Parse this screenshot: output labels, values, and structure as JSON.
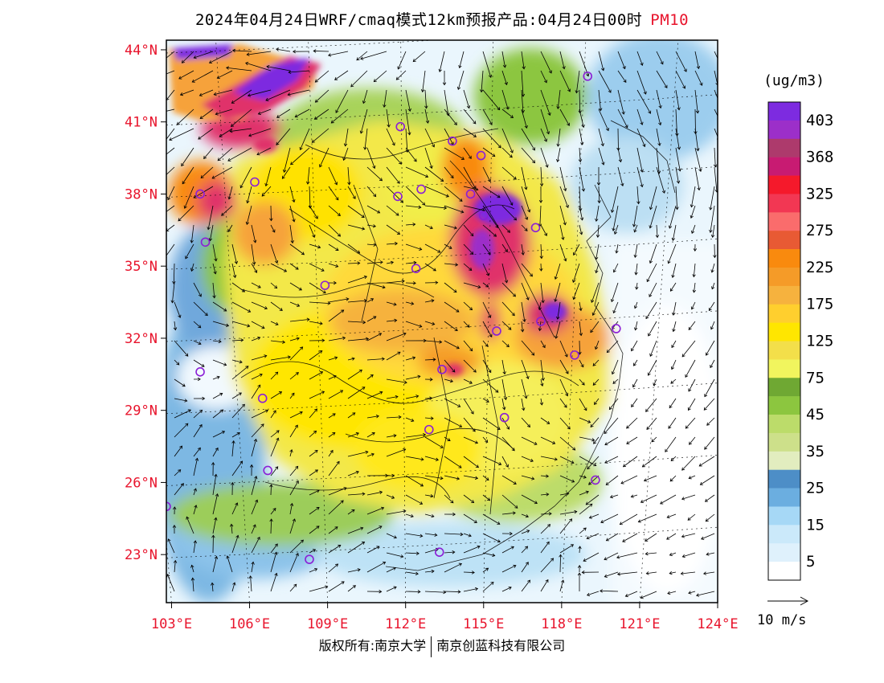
{
  "title": {
    "text": "2024年04月24日WRF/cmaq模式12km预报产品:04月24日00时",
    "pollutant": "PM10"
  },
  "map": {
    "lat_labels": [
      "44°N",
      "41°N",
      "38°N",
      "35°N",
      "32°N",
      "29°N",
      "26°N",
      "23°N"
    ],
    "lon_labels": [
      "103°E",
      "106°E",
      "109°E",
      "112°E",
      "115°E",
      "118°E",
      "121°E",
      "124°E"
    ],
    "lat_values": [
      44,
      41,
      38,
      35,
      32,
      29,
      26,
      23
    ],
    "lon_values": [
      103,
      106,
      109,
      112,
      115,
      118,
      121,
      124
    ],
    "extent": {
      "lon_min": 102.8,
      "lon_max": 124.0,
      "lat_min": 21.0,
      "lat_max": 44.4
    },
    "axis_label_color": "#e8142c",
    "city_marker_color": "#8b1fd6",
    "cities": [
      {
        "lon": 119.0,
        "lat": 42.9
      },
      {
        "lon": 104.3,
        "lat": 36.0
      },
      {
        "lon": 114.5,
        "lat": 38.0
      },
      {
        "lon": 106.2,
        "lat": 38.5
      },
      {
        "lon": 111.8,
        "lat": 40.8
      },
      {
        "lon": 114.9,
        "lat": 39.6
      },
      {
        "lon": 113.8,
        "lat": 40.2
      },
      {
        "lon": 111.7,
        "lat": 37.9
      },
      {
        "lon": 112.6,
        "lat": 38.2
      },
      {
        "lon": 104.1,
        "lat": 38.0
      },
      {
        "lon": 115.0,
        "lat": 37.1
      },
      {
        "lon": 117.0,
        "lat": 36.6
      },
      {
        "lon": 112.4,
        "lat": 34.9
      },
      {
        "lon": 108.9,
        "lat": 34.2
      },
      {
        "lon": 115.5,
        "lat": 32.3
      },
      {
        "lon": 117.2,
        "lat": 32.7
      },
      {
        "lon": 118.5,
        "lat": 31.3
      },
      {
        "lon": 120.1,
        "lat": 32.4
      },
      {
        "lon": 113.4,
        "lat": 30.7
      },
      {
        "lon": 104.1,
        "lat": 30.6
      },
      {
        "lon": 106.5,
        "lat": 29.5
      },
      {
        "lon": 112.9,
        "lat": 28.2
      },
      {
        "lon": 115.8,
        "lat": 28.7
      },
      {
        "lon": 119.3,
        "lat": 26.1
      },
      {
        "lon": 106.7,
        "lat": 26.5
      },
      {
        "lon": 102.8,
        "lat": 25.0
      },
      {
        "lon": 108.3,
        "lat": 22.8
      },
      {
        "lon": 113.3,
        "lat": 23.1
      }
    ]
  },
  "legend": {
    "unit": "(ug/m3)",
    "bands": [
      {
        "color": "#7d2be0",
        "label": "403"
      },
      {
        "color": "#9c2fc9",
        "label": ""
      },
      {
        "color": "#ad3a6c",
        "label": "368"
      },
      {
        "color": "#c81b72",
        "label": ""
      },
      {
        "color": "#f5192b",
        "label": "325"
      },
      {
        "color": "#f23753",
        "label": ""
      },
      {
        "color": "#fa6c6c",
        "label": "275"
      },
      {
        "color": "#e85a34",
        "label": ""
      },
      {
        "color": "#f98a0e",
        "label": "225"
      },
      {
        "color": "#f59b28",
        "label": ""
      },
      {
        "color": "#f6b23e",
        "label": "175"
      },
      {
        "color": "#ffcf2e",
        "label": ""
      },
      {
        "color": "#ffe600",
        "label": "125"
      },
      {
        "color": "#f3df4a",
        "label": ""
      },
      {
        "color": "#f1f55e",
        "label": "75"
      },
      {
        "color": "#6fa833",
        "label": ""
      },
      {
        "color": "#8cc63f",
        "label": "45"
      },
      {
        "color": "#bcdc6a",
        "label": ""
      },
      {
        "color": "#cde08a",
        "label": "35"
      },
      {
        "color": "#e2edbf",
        "label": ""
      },
      {
        "color": "#4d8ec7",
        "label": "25"
      },
      {
        "color": "#6baee0",
        "label": ""
      },
      {
        "color": "#a6d8f6",
        "label": "15"
      },
      {
        "color": "#cbe9fa",
        "label": ""
      },
      {
        "color": "#dff1fc",
        "label": "5"
      },
      {
        "color": "#ffffff",
        "label": ""
      }
    ]
  },
  "wind_reference": {
    "label": "10 m/s"
  },
  "footer": {
    "left": "版权所有:南京大学",
    "right": "南京创蓝科技有限公司"
  }
}
